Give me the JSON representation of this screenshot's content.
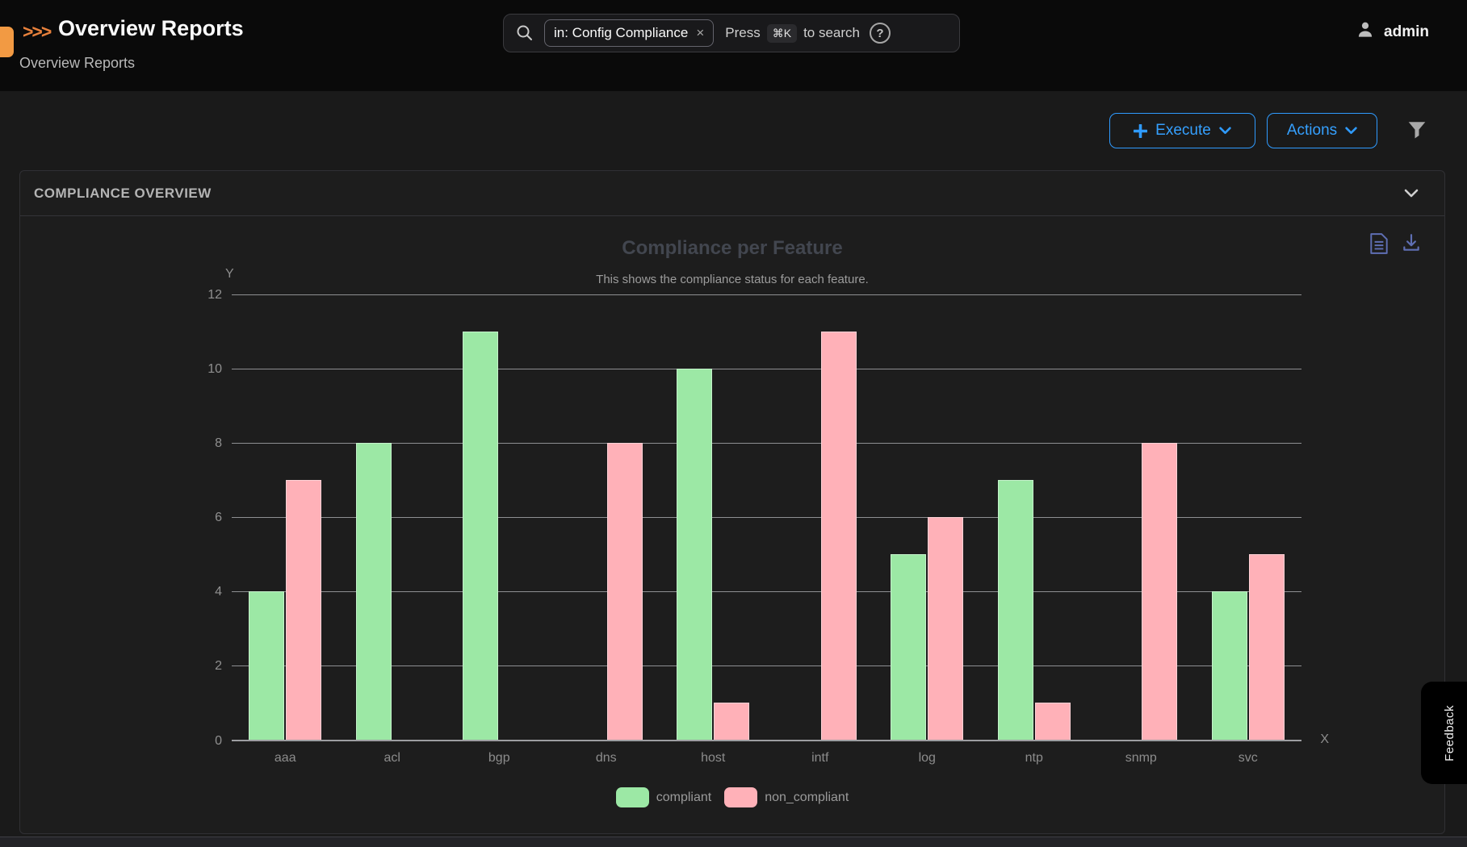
{
  "header": {
    "arrows": ">>>",
    "title": "Overview Reports",
    "breadcrumb": "Overview Reports",
    "search": {
      "chip": "in: Config Compliance",
      "chip_close": "×",
      "press_before": "Press",
      "kbd": "⌘K",
      "press_after": "to search",
      "help": "?"
    },
    "user": "admin"
  },
  "toolbar": {
    "execute_label": "Execute",
    "actions_label": "Actions"
  },
  "panel": {
    "title": "COMPLIANCE OVERVIEW"
  },
  "chart_data": {
    "type": "bar",
    "title": "Compliance per Feature",
    "subtitle": "This shows the compliance status for each feature.",
    "xlabel": "X",
    "ylabel": "Y",
    "categories": [
      "aaa",
      "acl",
      "bgp",
      "dns",
      "host",
      "intf",
      "log",
      "ntp",
      "snmp",
      "svc"
    ],
    "series": [
      {
        "name": "compliant",
        "color": "#9ce8a5",
        "values": [
          4,
          8,
          11,
          0,
          10,
          0,
          5,
          7,
          0,
          4
        ]
      },
      {
        "name": "non_compliant",
        "color": "#ffb1b8",
        "values": [
          7,
          0,
          0,
          8,
          1,
          11,
          6,
          1,
          8,
          5
        ]
      }
    ],
    "ylim": [
      0,
      12
    ],
    "yticks": [
      0,
      2,
      4,
      6,
      8,
      10,
      12
    ],
    "grid": true,
    "legend_position": "bottom"
  },
  "feedback_tab": "Feedback",
  "colors": {
    "accent_blue": "#2f9bff",
    "accent_orange": "#f29a43",
    "compliant_green": "#9ce8a5",
    "non_compliant_pink": "#ffb1b8"
  }
}
